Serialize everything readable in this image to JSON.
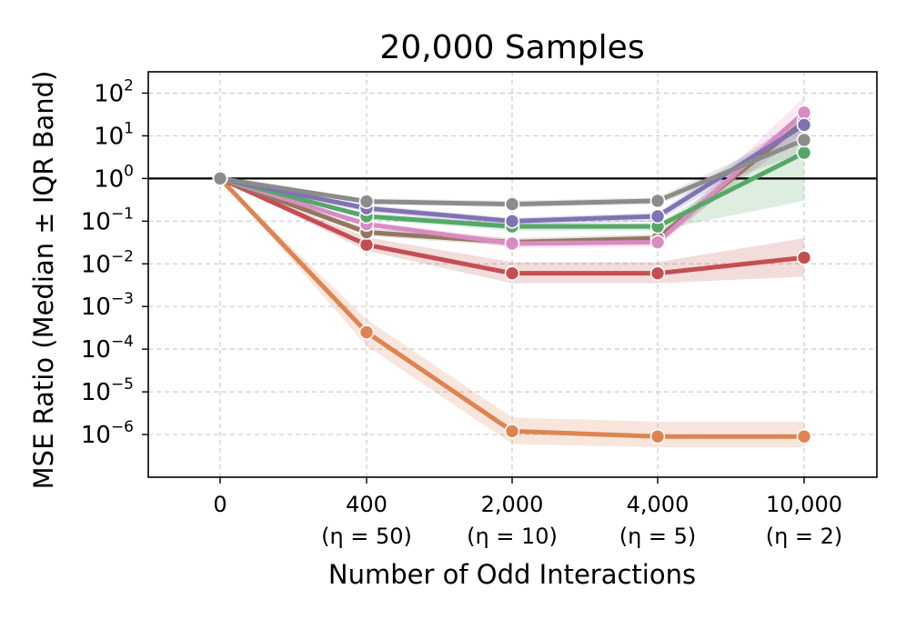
{
  "chart_data": {
    "type": "line",
    "title": "20,000 Samples",
    "xlabel": "Number of Odd Interactions",
    "ylabel": "MSE Ratio (Median ± IQR Band)",
    "yscale": "log",
    "ylim_exp": [
      -7,
      2.5
    ],
    "x_categories": [
      {
        "label": "0",
        "sub": ""
      },
      {
        "label": "400",
        "sub": "(η = 50)"
      },
      {
        "label": "2,000",
        "sub": "(η = 10)"
      },
      {
        "label": "4,000",
        "sub": "(η = 5)"
      },
      {
        "label": "10,000",
        "sub": "(η = 2)"
      }
    ],
    "y_ticks": [
      {
        "base": "10",
        "exp": "2",
        "value_exp": 2
      },
      {
        "base": "10",
        "exp": "1",
        "value_exp": 1
      },
      {
        "base": "10",
        "exp": "0",
        "value_exp": 0
      },
      {
        "base": "10",
        "exp": "−1",
        "value_exp": -1
      },
      {
        "base": "10",
        "exp": "−2",
        "value_exp": -2
      },
      {
        "base": "10",
        "exp": "−3",
        "value_exp": -3
      },
      {
        "base": "10",
        "exp": "−4",
        "value_exp": -4
      },
      {
        "base": "10",
        "exp": "−5",
        "value_exp": -5
      },
      {
        "base": "10",
        "exp": "−6",
        "value_exp": -6
      }
    ],
    "reference_line": {
      "value": 1,
      "color": "#000000"
    },
    "grid": true,
    "series": [
      {
        "name": "orange",
        "color": "#dd8452",
        "median": [
          1,
          0.00025,
          1.2e-06,
          9e-07,
          9e-07
        ],
        "q1": [
          1,
          0.00012,
          6e-07,
          5e-07,
          5e-07
        ],
        "q3": [
          1,
          0.0005,
          2.5e-06,
          2e-06,
          2e-06
        ]
      },
      {
        "name": "red",
        "color": "#c44e52",
        "median": [
          1,
          0.028,
          0.006,
          0.006,
          0.014
        ],
        "q1": [
          1,
          0.02,
          0.0035,
          0.0035,
          0.005
        ],
        "q3": [
          1,
          0.042,
          0.011,
          0.011,
          0.04
        ]
      },
      {
        "name": "brown",
        "color": "#937860",
        "median": [
          1,
          0.055,
          0.032,
          0.04,
          22
        ],
        "q1": [
          1,
          0.045,
          0.026,
          0.03,
          12
        ],
        "q3": [
          1,
          0.068,
          0.04,
          0.05,
          40
        ]
      },
      {
        "name": "pink",
        "color": "#da8bc3",
        "median": [
          1,
          0.085,
          0.03,
          0.032,
          35
        ],
        "q1": [
          1,
          0.07,
          0.024,
          0.025,
          18
        ],
        "q3": [
          1,
          0.1,
          0.038,
          0.04,
          80
        ]
      },
      {
        "name": "green",
        "color": "#55a868",
        "median": [
          1,
          0.13,
          0.075,
          0.075,
          4
        ],
        "q1": [
          1,
          0.11,
          0.06,
          0.06,
          0.3
        ],
        "q3": [
          1,
          0.15,
          0.09,
          0.09,
          10
        ]
      },
      {
        "name": "purple",
        "color": "#8172b3",
        "median": [
          1,
          0.2,
          0.1,
          0.13,
          18
        ],
        "q1": [
          1,
          0.16,
          0.08,
          0.1,
          10
        ],
        "q3": [
          1,
          0.24,
          0.12,
          0.16,
          30
        ]
      },
      {
        "name": "gray",
        "color": "#8c8c8c",
        "median": [
          1,
          0.29,
          0.25,
          0.3,
          8
        ],
        "q1": [
          1,
          0.25,
          0.21,
          0.25,
          4
        ],
        "q3": [
          1,
          0.34,
          0.3,
          0.36,
          15
        ]
      }
    ]
  }
}
